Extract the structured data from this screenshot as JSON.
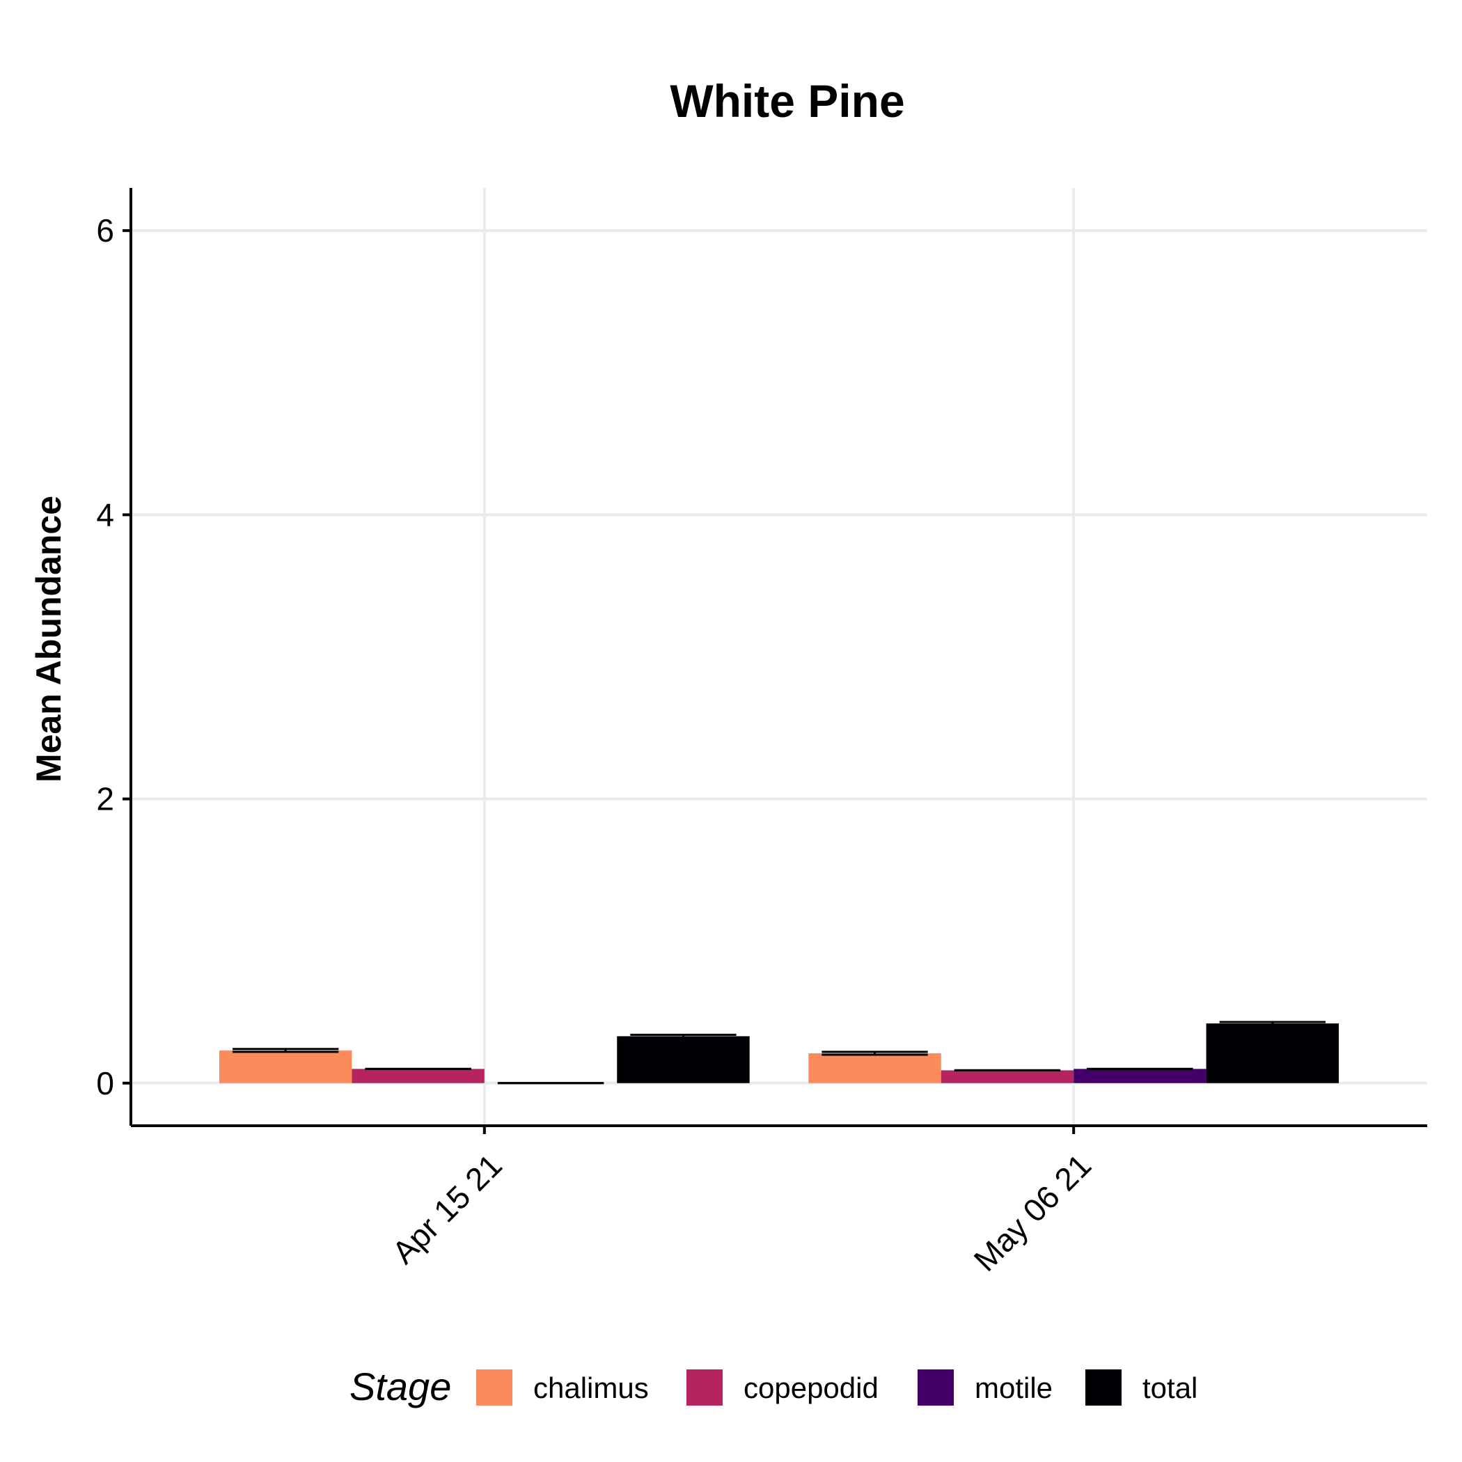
{
  "chart_data": {
    "type": "bar",
    "title": "White Pine",
    "xlabel": "",
    "ylabel": "Mean Abundance",
    "ylim": [
      -0.3,
      6.3
    ],
    "yticks": [
      0,
      2,
      4,
      6
    ],
    "categories": [
      "Apr 15 21",
      "May 06 21"
    ],
    "series": [
      {
        "name": "chalimus",
        "color": "#FB8B5A",
        "values": [
          0.23,
          0.21
        ],
        "error": [
          0.01,
          0.01
        ]
      },
      {
        "name": "copepodid",
        "color": "#B5245F",
        "values": [
          0.1,
          0.09
        ],
        "error": [
          0.0,
          0.0
        ]
      },
      {
        "name": "motile",
        "color": "#440068",
        "values": [
          0.0,
          0.1
        ],
        "error": [
          0.0,
          0.0
        ]
      },
      {
        "name": "total",
        "color": "#000004",
        "values": [
          0.33,
          0.42
        ],
        "error": [
          0.01,
          0.01
        ]
      }
    ],
    "legend": {
      "title": "Stage",
      "position": "bottom"
    },
    "grid": true
  }
}
